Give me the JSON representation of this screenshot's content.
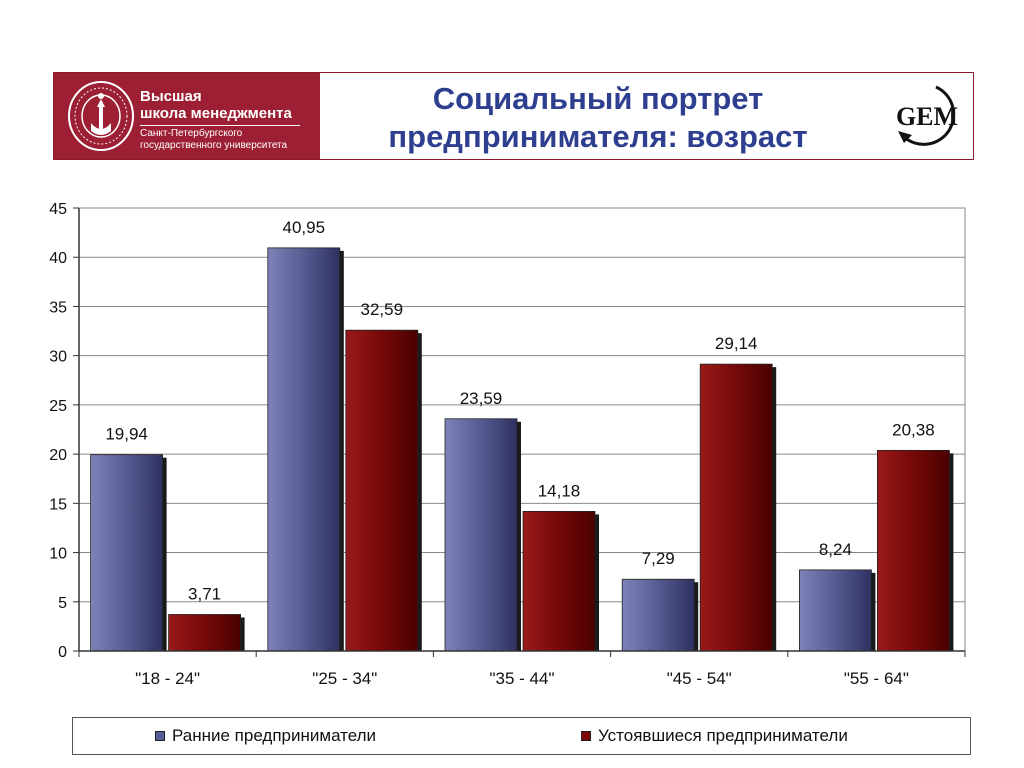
{
  "header": {
    "brand": {
      "line1": "Высшая",
      "line2": "школа менеджмента",
      "line3": "Санкт-Петербургского",
      "line4": "государственного университета",
      "background": "#9c1f33"
    },
    "title_line1": "Социальный портрет",
    "title_line2": "предпринимателя: возраст",
    "logo_text": "GEM"
  },
  "chart_data": {
    "type": "bar",
    "categories": [
      "\"18 - 24\"",
      "\"25 - 34\"",
      "\"35 - 44\"",
      "\"45 - 54\"",
      "\"55 - 64\""
    ],
    "series": [
      {
        "name": "Ранние предприниматели",
        "color": "#5a5f96",
        "values": [
          19.94,
          40.95,
          23.59,
          7.29,
          8.24
        ],
        "labels": [
          "19,94",
          "40,95",
          "23,59",
          "7,29",
          "8,24"
        ]
      },
      {
        "name": "Устоявшиеся предприниматели",
        "color": "#7a0a0a",
        "values": [
          3.71,
          32.59,
          14.18,
          29.14,
          20.38
        ],
        "labels": [
          "3,71",
          "32,59",
          "14,18",
          "29,14",
          "20,38"
        ]
      }
    ],
    "ylim": [
      0,
      45
    ],
    "yticks": [
      0,
      5,
      10,
      15,
      20,
      25,
      30,
      35,
      40,
      45
    ],
    "grid": true,
    "legend_position": "bottom"
  }
}
